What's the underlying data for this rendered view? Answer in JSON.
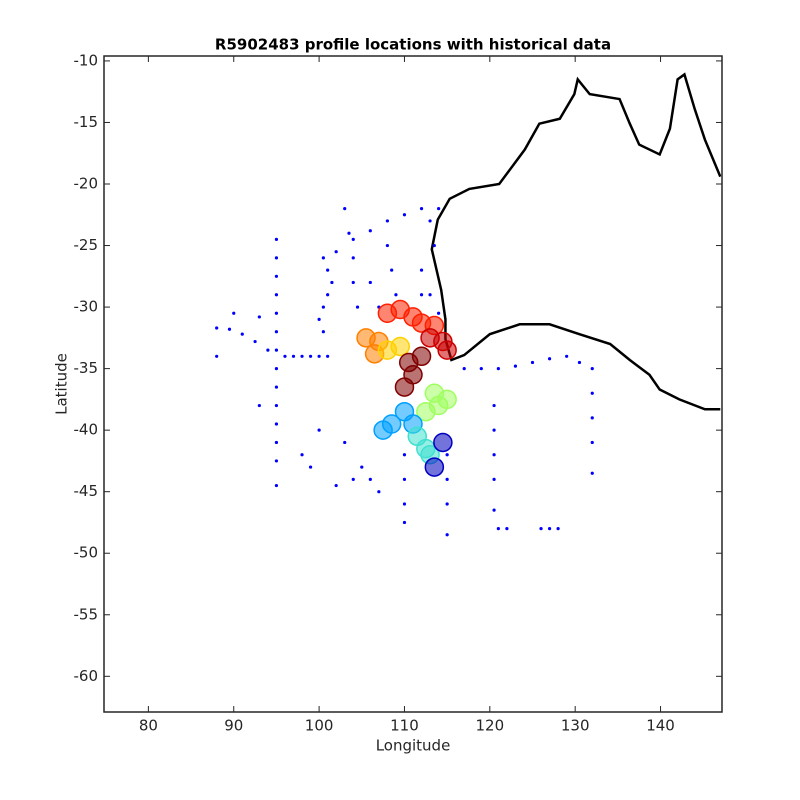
{
  "chart_data": {
    "type": "scatter",
    "title": "R5902483 profile locations with historical data",
    "xlabel": "Longitude",
    "ylabel": "Latitude",
    "xlim": [
      74.8,
      147.2
    ],
    "ylim": [
      -62.9,
      -9.6
    ],
    "xticks": [
      80,
      90,
      100,
      110,
      120,
      130,
      140
    ],
    "yticks": [
      -10,
      -15,
      -20,
      -25,
      -30,
      -35,
      -40,
      -45,
      -50,
      -55,
      -60
    ],
    "coastline": {
      "color": "#000000",
      "x": [
        147,
        145.2,
        144.0,
        142.8,
        142.0,
        141.1,
        139.9,
        137.5,
        136.4,
        135.2,
        131.7,
        130.3,
        129.9,
        128.2,
        125.8,
        124.1,
        121.1,
        117.6,
        115.3,
        113.9,
        113.2,
        113.6,
        114.3,
        114.8,
        114.8,
        115.5,
        117.0,
        120.0,
        123.5,
        127.0,
        130.5,
        134.1,
        136.4,
        138.7,
        139.9,
        142.2,
        145.2,
        147
      ],
      "y": [
        -19.4,
        -16.4,
        -13.9,
        -11.1,
        -11.5,
        -15.5,
        -17.6,
        -16.8,
        -15.1,
        -13.1,
        -12.7,
        -11.5,
        -12.7,
        -14.7,
        -15.1,
        -17.2,
        -20.0,
        -20.4,
        -21.2,
        -22.9,
        -25.3,
        -26.5,
        -28.6,
        -31.0,
        -32.6,
        -34.3,
        -33.9,
        -32.2,
        -31.4,
        -31.4,
        -32.2,
        -33.0,
        -34.3,
        -35.5,
        -36.7,
        -37.5,
        -38.3,
        -38.3
      ]
    },
    "series": [
      {
        "color": "#0000ff",
        "x": [
          95,
          95,
          95,
          95,
          95,
          95,
          95,
          95,
          95,
          95,
          95,
          95,
          95,
          95,
          96,
          97,
          98,
          99,
          100,
          101,
          88,
          89.5,
          91,
          92.5,
          94,
          88,
          90,
          93,
          100.5,
          101,
          101.5,
          101,
          100.5,
          100,
          100.5,
          102,
          104,
          106,
          108,
          110,
          112,
          114,
          103,
          103.5,
          104,
          104,
          104.5,
          110,
          110,
          110,
          110,
          115,
          115,
          115,
          115,
          120.5,
          120.5,
          120.5,
          120.5,
          120.5,
          121,
          122,
          126,
          127,
          128,
          132,
          132,
          132,
          132,
          132,
          117,
          119,
          121,
          123,
          125,
          127,
          129,
          130.5,
          113,
          113.5,
          112,
          112,
          113,
          114,
          108,
          108.5,
          109,
          106,
          107,
          105,
          106,
          107,
          98,
          99,
          103,
          104,
          93,
          100,
          102
        ],
        "y": [
          -24.5,
          -26,
          -27.5,
          -29,
          -30.5,
          -32,
          -33.5,
          -35,
          -36.5,
          -38,
          -39.5,
          -41,
          -42.5,
          -44.5,
          -34,
          -34,
          -34,
          -34,
          -34,
          -34,
          -31.7,
          -31.8,
          -32.2,
          -32.8,
          -33.5,
          -34,
          -30.5,
          -30.8,
          -26,
          -27,
          -28,
          -29,
          -30,
          -31,
          -32,
          -25.5,
          -24.5,
          -23.8,
          -23,
          -22.5,
          -22,
          -22,
          -22,
          -24,
          -26,
          -28,
          -30,
          -42,
          -44,
          -46,
          -47.5,
          -42,
          -44,
          -46,
          -48.5,
          -38,
          -40,
          -42,
          -44,
          -46.5,
          -48,
          -48,
          -48,
          -48,
          -48,
          -35,
          -37,
          -39,
          -41,
          -43.5,
          -35,
          -35,
          -35,
          -34.8,
          -34.5,
          -34.2,
          -34,
          -34.5,
          -23,
          -25,
          -27,
          -29,
          -29,
          -30.5,
          -25,
          -27,
          -29,
          -28,
          -30,
          -43,
          -44,
          -45,
          -42,
          -43,
          -41,
          -44,
          -38,
          -40,
          -44.5
        ]
      },
      {
        "colors": [
          "#ff2000",
          "#ff2000",
          "#ff2000",
          "#ff2000",
          "#ff2000",
          "#cc0000",
          "#cc0000",
          "#cc0000",
          "#ff8000",
          "#ff8000",
          "#ff8000",
          "#ffd000",
          "#ffd000",
          "#800000",
          "#800000",
          "#800000",
          "#800000",
          "#a0ff60",
          "#a0ff60",
          "#a0ff60",
          "#a0ff60",
          "#00a0ff",
          "#00a0ff",
          "#00a0ff",
          "#00a0ff",
          "#40e0d0",
          "#40e0d0",
          "#40e0d0",
          "#0000c0",
          "#0000c0"
        ],
        "x": [
          108,
          109.5,
          111,
          112,
          113.5,
          113,
          114.5,
          115,
          105.5,
          107,
          106.5,
          108,
          109.5,
          110.5,
          111,
          110,
          112,
          113.5,
          114,
          115,
          112.5,
          108.5,
          110,
          111,
          107.5,
          111.5,
          112.5,
          113,
          114.5,
          113.5
        ],
        "y": [
          -30.5,
          -30.2,
          -30.8,
          -31.3,
          -31.5,
          -32.5,
          -32.8,
          -33.5,
          -32.5,
          -32.8,
          -33.8,
          -33.5,
          -33.2,
          -34.5,
          -35.5,
          -36.5,
          -34,
          -37,
          -38,
          -37.5,
          -38.5,
          -39.5,
          -38.5,
          -39.5,
          -40,
          -40.5,
          -41.5,
          -42,
          -41,
          -43
        ]
      }
    ]
  }
}
